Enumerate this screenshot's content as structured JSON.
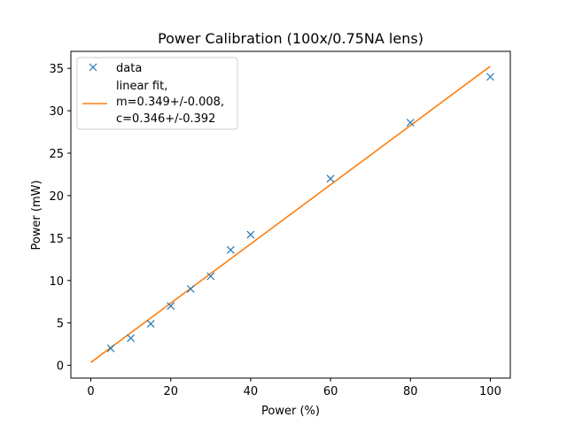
{
  "chart_data": {
    "type": "scatter",
    "title": "Power Calibration (100x/0.75NA lens)",
    "xlabel": "Power (%)",
    "ylabel": "Power (mW)",
    "xlim": [
      -5,
      105
    ],
    "ylim": [
      -1.5,
      37
    ],
    "xticks": [
      0,
      20,
      40,
      60,
      80,
      100
    ],
    "yticks": [
      0,
      5,
      10,
      15,
      20,
      25,
      30,
      35
    ],
    "xtick_labels": [
      "0",
      "20",
      "40",
      "60",
      "80",
      "100"
    ],
    "ytick_labels": [
      "0",
      "5",
      "10",
      "15",
      "20",
      "25",
      "30",
      "35"
    ],
    "grid": false,
    "legend_position": "top-left",
    "series": [
      {
        "name": "data",
        "kind": "marker-x",
        "color": "#1f77b4",
        "x": [
          5,
          10,
          15,
          20,
          25,
          30,
          35,
          40,
          60,
          80,
          100
        ],
        "y": [
          2.0,
          3.2,
          4.9,
          7.0,
          9.0,
          10.5,
          13.6,
          15.4,
          22.0,
          28.6,
          34.0
        ]
      },
      {
        "name": "linear fit,",
        "kind": "line",
        "color": "#ff7f0e",
        "slope": 0.349,
        "intercept": 0.346,
        "x_range": [
          0,
          100
        ]
      }
    ],
    "legend": {
      "entries": [
        {
          "lines": [
            "data"
          ]
        },
        {
          "lines": [
            "linear fit,",
            "m=0.349+/-0.008,",
            "c=0.346+/-0.392"
          ]
        }
      ]
    }
  }
}
